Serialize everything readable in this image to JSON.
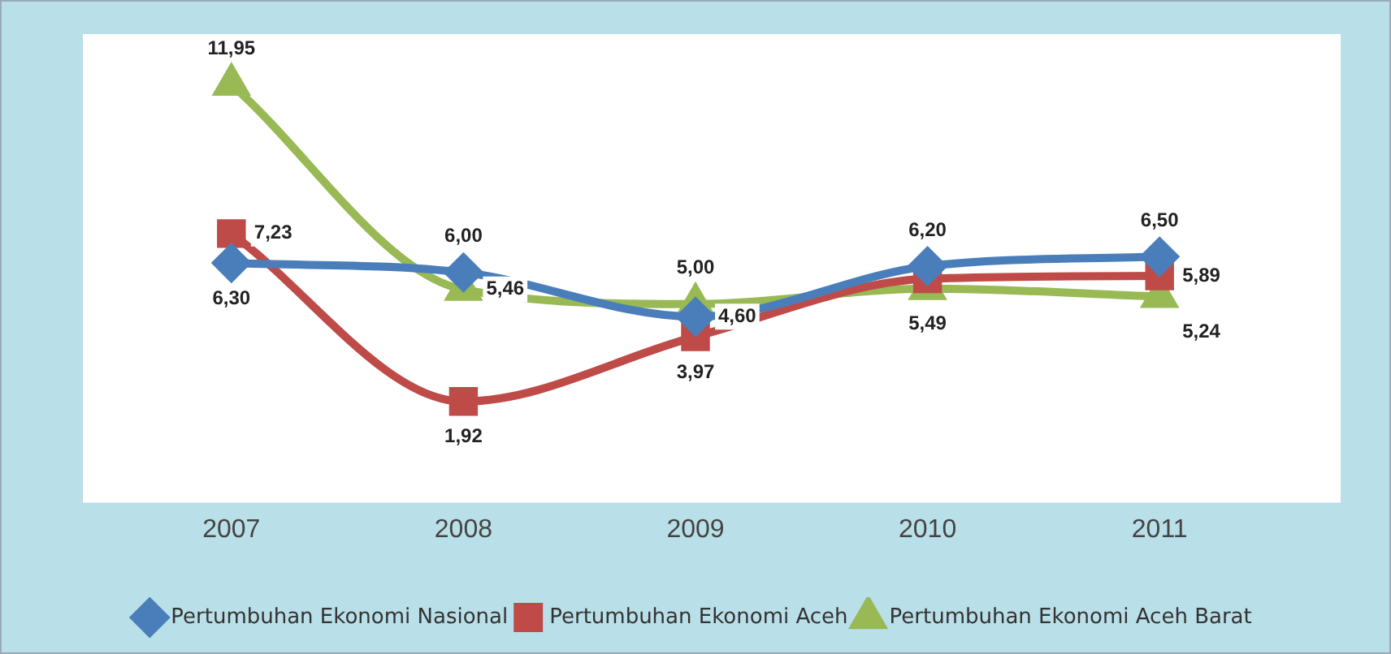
{
  "chart_data": {
    "type": "line",
    "categories": [
      "2007",
      "2008",
      "2009",
      "2010",
      "2011"
    ],
    "series": [
      {
        "name": "Pertumbuhan Ekonomi Nasional",
        "color": "#4a7ebb",
        "marker": "diamond",
        "values": [
          6.3,
          6.0,
          4.6,
          6.2,
          6.5
        ],
        "value_labels": [
          "6,30",
          "6,00",
          "4,60",
          "6,20",
          "6,50"
        ]
      },
      {
        "name": "Pertumbuhan Ekonomi Aceh",
        "color": "#be4b48",
        "marker": "square",
        "values": [
          7.23,
          1.92,
          3.97,
          5.8,
          5.89
        ],
        "value_labels": [
          "7,23",
          "1,92",
          "3,97",
          null,
          "5,89"
        ]
      },
      {
        "name": "Pertumbuhan Ekonomi Aceh Barat",
        "color": "#98b954",
        "marker": "triangle",
        "values": [
          11.95,
          5.46,
          5.0,
          5.49,
          5.24
        ],
        "value_labels": [
          "11,95",
          "5,46",
          "5,00",
          "5,49",
          "5,24"
        ]
      }
    ],
    "legend": "bottom",
    "grid": false
  }
}
